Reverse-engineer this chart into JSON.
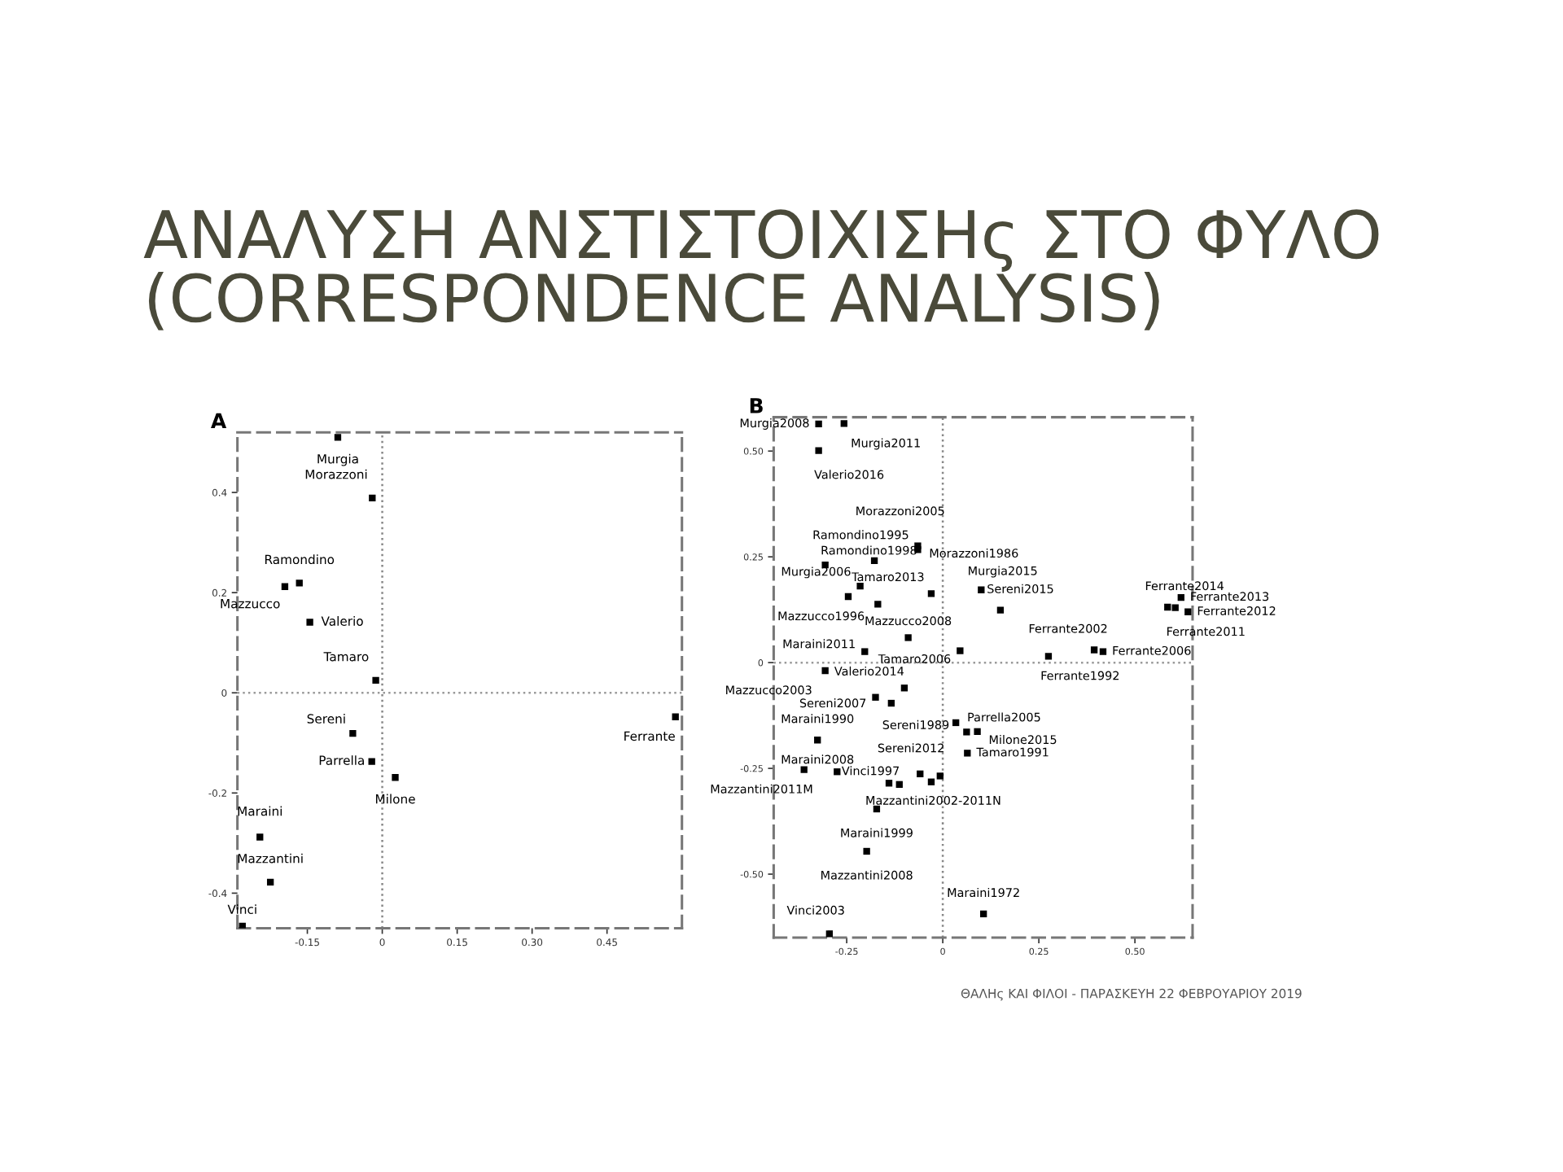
{
  "chart_data": [
    {
      "type": "other",
      "title": "ΑΝΑΛΥΣΗ ΑΝΣΤΙΣΤΟΙΧΙΣΗς ΣΤΟ ΦΥΛΟ (CORRESPONDENCE ANALYSIS)",
      "annotations": [
        "ΘΑΛΗς ΚΑΙ ΦΙΛΟΙ - ΠΑΡΑΣΚΕΥΗ 22 ΦΕΒΡΟΥΑΡΙΟΥ 2019"
      ]
    },
    {
      "type": "scatter",
      "title": "A",
      "marker": "square",
      "grid": false,
      "legend": false,
      "xlim": [
        -0.29,
        0.6
      ],
      "ylim": [
        -0.47,
        0.52
      ],
      "xticks": [
        {
          "value": -0.15,
          "label": "-0.15"
        },
        0,
        {
          "value": 0.15,
          "label": "0.15"
        },
        {
          "value": 0.3,
          "label": "0.30"
        },
        {
          "value": 0.45,
          "label": "0.45"
        }
      ],
      "yticks": [
        {
          "value": -0.4,
          "label": "-0.4"
        },
        {
          "value": -0.2,
          "label": "-0.2"
        },
        0,
        0.2,
        0.4
      ],
      "ref_lines": [
        {
          "axis": "x",
          "value": 0,
          "line_style": "dotted",
          "color": "#888888"
        },
        {
          "axis": "y",
          "value": 0,
          "line_style": "dotted",
          "color": "#9a9a9a"
        }
      ],
      "series": [
        {
          "color": "#000000",
          "x": [
            -0.089,
            -0.02,
            -0.166,
            -0.195,
            -0.145,
            -0.013,
            0.587,
            -0.059,
            -0.021,
            0.026,
            -0.245,
            -0.224,
            -0.28
          ],
          "values": [
            0.51,
            0.389,
            0.219,
            0.212,
            0.141,
            0.025,
            -0.048,
            -0.081,
            -0.137,
            -0.169,
            -0.288,
            -0.378,
            -0.466
          ]
        }
      ],
      "annotations": [
        {
          "text": "Murgia",
          "x": -0.089,
          "y": 0.51
        },
        {
          "text": "Morazzoni",
          "x": -0.02,
          "y": 0.389
        },
        {
          "text": "Ramondino",
          "x": -0.166,
          "y": 0.219
        },
        {
          "text": "Mazzucco",
          "x": -0.195,
          "y": 0.212
        },
        {
          "text": "Valerio",
          "x": -0.145,
          "y": 0.141
        },
        {
          "text": "Tamaro",
          "x": -0.013,
          "y": 0.025
        },
        {
          "text": "Ferrante",
          "x": 0.587,
          "y": -0.048
        },
        {
          "text": "Sereni",
          "x": -0.059,
          "y": -0.081
        },
        {
          "text": "Parrella",
          "x": -0.021,
          "y": -0.137
        },
        {
          "text": "Milone",
          "x": 0.026,
          "y": -0.169
        },
        {
          "text": "Maraini",
          "x": -0.245,
          "y": -0.288
        },
        {
          "text": "Mazzantini",
          "x": -0.224,
          "y": -0.378
        },
        {
          "text": "Vinci",
          "x": -0.28,
          "y": -0.466
        }
      ]
    },
    {
      "type": "scatter",
      "title": "B",
      "marker": "square",
      "grid": false,
      "legend": false,
      "xlim": [
        -0.44,
        0.65
      ],
      "ylim": [
        -0.65,
        0.58
      ],
      "xticks": [
        {
          "value": -0.25,
          "label": "-0.25"
        },
        0,
        0.25,
        {
          "value": 0.5,
          "label": "0.50"
        }
      ],
      "yticks": [
        {
          "value": -0.5,
          "label": "-0.50"
        },
        {
          "value": -0.25,
          "label": "-0.25"
        },
        0,
        0.25,
        {
          "value": 0.5,
          "label": "0.50"
        }
      ],
      "ref_lines": [
        {
          "axis": "x",
          "value": 0,
          "line_style": "dotted",
          "color": "#888888"
        },
        {
          "axis": "y",
          "value": 0,
          "line_style": "dotted",
          "color": "#9a9a9a"
        }
      ],
      "series": [
        {
          "color": "#000000",
          "x": [
            -0.323,
            -0.257,
            -0.323,
            -0.065,
            -0.065,
            -0.178,
            -0.306,
            -0.215,
            -0.03,
            -0.246,
            -0.169,
            0.1,
            0.15,
            -0.09,
            -0.203,
            0.045,
            0.275,
            0.394,
            0.417,
            0.585,
            0.62,
            0.638,
            0.605,
            -0.306,
            -0.1,
            -0.175,
            -0.134,
            0.034,
            0.062,
            0.09,
            -0.326,
            0.064,
            -0.059,
            -0.361,
            -0.275,
            -0.113,
            -0.14,
            -0.03,
            -0.007,
            -0.172,
            -0.198,
            0.106,
            -0.295
          ],
          "values": [
            0.564,
            0.565,
            0.501,
            0.276,
            0.267,
            0.241,
            0.231,
            0.181,
            0.163,
            0.156,
            0.138,
            0.172,
            0.124,
            0.059,
            0.026,
            0.028,
            0.015,
            0.03,
            0.026,
            0.131,
            0.154,
            0.12,
            0.13,
            -0.019,
            -0.06,
            -0.082,
            -0.096,
            -0.142,
            -0.164,
            -0.163,
            -0.183,
            -0.214,
            -0.263,
            -0.253,
            -0.258,
            -0.288,
            -0.285,
            -0.282,
            -0.268,
            -0.346,
            -0.446,
            -0.594,
            -0.641
          ]
        }
      ],
      "annotations": [
        {
          "text": "Murgia2008",
          "x": -0.323,
          "y": 0.564
        },
        {
          "text": "Murgia2011",
          "x": -0.257,
          "y": 0.565
        },
        {
          "text": "Valerio2016",
          "x": -0.323,
          "y": 0.501
        },
        {
          "text": "Morazzoni2005",
          "x": -0.065,
          "y": 0.276
        },
        {
          "text": "Morazzoni1986",
          "x": -0.065,
          "y": 0.267
        },
        {
          "text": "Ramondino1995",
          "x": -0.178,
          "y": 0.241
        },
        {
          "text": "Ramondino1998",
          "x": -0.306,
          "y": 0.231
        },
        {
          "text": "Murgia2006",
          "x": -0.215,
          "y": 0.181
        },
        {
          "text": "Tamaro2013",
          "x": -0.03,
          "y": 0.163
        },
        {
          "text": "Mazzucco1996",
          "x": -0.246,
          "y": 0.156
        },
        {
          "text": "Murgia2015",
          "x": 0.1,
          "y": 0.172
        },
        {
          "text": "Sereni2015",
          "x": 0.15,
          "y": 0.124
        },
        {
          "text": "Mazzucco2008",
          "x": -0.09,
          "y": 0.059
        },
        {
          "text": "Maraini2011",
          "x": -0.203,
          "y": 0.026
        },
        {
          "text": "Tamaro2006",
          "x": 0.045,
          "y": 0.028
        },
        {
          "text": "Ferrante1992",
          "x": 0.275,
          "y": 0.015
        },
        {
          "text": "Ferrante2002",
          "x": 0.394,
          "y": 0.03
        },
        {
          "text": "Ferrante2006",
          "x": 0.417,
          "y": 0.026
        },
        {
          "text": "Ferrante2014",
          "x": 0.585,
          "y": 0.131
        },
        {
          "text": "Ferrante2013",
          "x": 0.62,
          "y": 0.154
        },
        {
          "text": "Ferrante2012",
          "x": 0.638,
          "y": 0.12
        },
        {
          "text": "Ferrante2011",
          "x": 0.605,
          "y": 0.13
        },
        {
          "text": "Mazzucco2003",
          "x": -0.306,
          "y": -0.019
        },
        {
          "text": "Valerio2014",
          "x": -0.1,
          "y": -0.06
        },
        {
          "text": "Sereni2007",
          "x": -0.175,
          "y": -0.082
        },
        {
          "text": "Sereni1989",
          "x": -0.134,
          "y": -0.096
        },
        {
          "text": "Parrella2005",
          "x": 0.034,
          "y": -0.142
        },
        {
          "text": "Milone2015",
          "x": 0.09,
          "y": -0.163
        },
        {
          "text": "Maraini1990",
          "x": -0.326,
          "y": -0.183
        },
        {
          "text": "Tamaro1991",
          "x": 0.064,
          "y": -0.214
        },
        {
          "text": "Sereni2012",
          "x": -0.059,
          "y": -0.263
        },
        {
          "text": "Maraini2008",
          "x": -0.326,
          "y": -0.183
        },
        {
          "text": "Mazzantini2011M",
          "x": -0.361,
          "y": -0.253
        },
        {
          "text": "Vinci1997",
          "x": -0.275,
          "y": -0.258
        },
        {
          "text": "Mazzantini2002-2011N",
          "x": -0.113,
          "y": -0.288
        },
        {
          "text": "Maraini1999",
          "x": -0.172,
          "y": -0.346
        },
        {
          "text": "Mazzantini2008",
          "x": -0.198,
          "y": -0.446
        },
        {
          "text": "Maraini1972",
          "x": 0.106,
          "y": -0.594
        },
        {
          "text": "Vinci2003",
          "x": -0.295,
          "y": -0.641
        }
      ]
    }
  ]
}
